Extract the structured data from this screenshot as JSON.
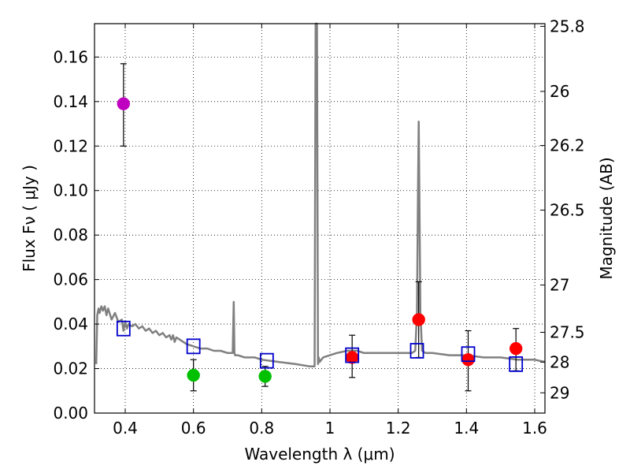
{
  "chart_data": {
    "type": "scatter",
    "title": "",
    "xlabel": "Wavelength  λ (μm)",
    "ylabel": "Flux  Fν  ( μJy )",
    "y2label": "Magnitude (AB)",
    "xlim": [
      0.31,
      1.63
    ],
    "ylim": [
      0.0,
      0.175
    ],
    "grid": true,
    "xticks": [
      0.4,
      0.6,
      0.8,
      1.0,
      1.2,
      1.4,
      1.6
    ],
    "xtick_labels": [
      "0.4",
      "0.6",
      "0.8",
      "1",
      "1.2",
      "1.4",
      "1.6"
    ],
    "yticks": [
      0.0,
      0.02,
      0.04,
      0.06,
      0.08,
      0.1,
      0.12,
      0.14,
      0.16
    ],
    "ytick_labels": [
      "0.00",
      "0.02",
      "0.04",
      "0.06",
      "0.08",
      "0.10",
      "0.12",
      "0.14",
      "0.16"
    ],
    "mag_ticks": [
      25.8,
      26,
      26.2,
      26.5,
      27,
      27.5,
      28,
      29
    ],
    "mag_tick_labels": [
      "25.8",
      "26",
      "26.2",
      "26.5",
      "27",
      "27.5",
      "28",
      "29"
    ],
    "spectrum": {
      "name": "model SED",
      "color": "#808080",
      "x": [
        0.315,
        0.318,
        0.322,
        0.325,
        0.33,
        0.335,
        0.34,
        0.345,
        0.35,
        0.36,
        0.37,
        0.38,
        0.39,
        0.395,
        0.4,
        0.405,
        0.41,
        0.42,
        0.43,
        0.44,
        0.45,
        0.46,
        0.47,
        0.48,
        0.49,
        0.5,
        0.51,
        0.52,
        0.53,
        0.535,
        0.54,
        0.545,
        0.55,
        0.56,
        0.57,
        0.58,
        0.6,
        0.62,
        0.64,
        0.66,
        0.68,
        0.7,
        0.715,
        0.718,
        0.72,
        0.722,
        0.725,
        0.73,
        0.75,
        0.78,
        0.8,
        0.85,
        0.9,
        0.94,
        0.955,
        0.958,
        0.96,
        0.962,
        0.965,
        0.967,
        0.97,
        0.98,
        1.0,
        1.02,
        1.05,
        1.08,
        1.1,
        1.15,
        1.2,
        1.24,
        1.25,
        1.255,
        1.258,
        1.26,
        1.262,
        1.265,
        1.27,
        1.28,
        1.3,
        1.35,
        1.4,
        1.45,
        1.5,
        1.55,
        1.6,
        1.63
      ],
      "y": [
        0.022,
        0.044,
        0.047,
        0.045,
        0.048,
        0.046,
        0.048,
        0.044,
        0.047,
        0.042,
        0.045,
        0.041,
        0.042,
        0.037,
        0.041,
        0.038,
        0.04,
        0.039,
        0.04,
        0.038,
        0.039,
        0.037,
        0.038,
        0.036,
        0.037,
        0.035,
        0.036,
        0.034,
        0.035,
        0.033,
        0.035,
        0.032,
        0.034,
        0.033,
        0.032,
        0.031,
        0.03,
        0.029,
        0.029,
        0.028,
        0.028,
        0.027,
        0.027,
        0.05,
        0.027,
        0.026,
        0.026,
        0.026,
        0.025,
        0.025,
        0.024,
        0.023,
        0.022,
        0.021,
        0.021,
        0.175,
        0.175,
        0.175,
        0.022,
        0.025,
        0.023,
        0.025,
        0.026,
        0.027,
        0.028,
        0.028,
        0.027,
        0.027,
        0.027,
        0.027,
        0.028,
        0.045,
        0.1,
        0.131,
        0.1,
        0.045,
        0.028,
        0.027,
        0.027,
        0.026,
        0.026,
        0.025,
        0.025,
        0.024,
        0.024,
        0.023
      ]
    },
    "series": [
      {
        "name": "magenta",
        "marker": "circle",
        "color": "#c000c0",
        "x": [
          0.395
        ],
        "y": [
          0.139
        ],
        "yerr_low": [
          0.12
        ],
        "yerr_high": [
          0.157
        ]
      },
      {
        "name": "green",
        "marker": "circle",
        "color": "#00c000",
        "x": [
          0.6,
          0.81
        ],
        "y": [
          0.017,
          0.0165
        ],
        "yerr_low": [
          0.01,
          0.012
        ],
        "yerr_high": [
          0.024,
          0.021
        ]
      },
      {
        "name": "red",
        "marker": "circle",
        "color": "#ff0000",
        "x": [
          1.065,
          1.26,
          1.405,
          1.545
        ],
        "y": [
          0.025,
          0.042,
          0.024,
          0.029
        ],
        "yerr_low": [
          0.016,
          0.025,
          0.01,
          0.019
        ],
        "yerr_high": [
          0.035,
          0.059,
          0.037,
          0.038
        ]
      },
      {
        "name": "model photometry",
        "marker": "square",
        "color": "#0000cc",
        "x": [
          0.395,
          0.6,
          0.815,
          1.065,
          1.255,
          1.405,
          1.545
        ],
        "y": [
          0.038,
          0.03,
          0.0235,
          0.026,
          0.028,
          0.0265,
          0.022
        ]
      }
    ]
  }
}
